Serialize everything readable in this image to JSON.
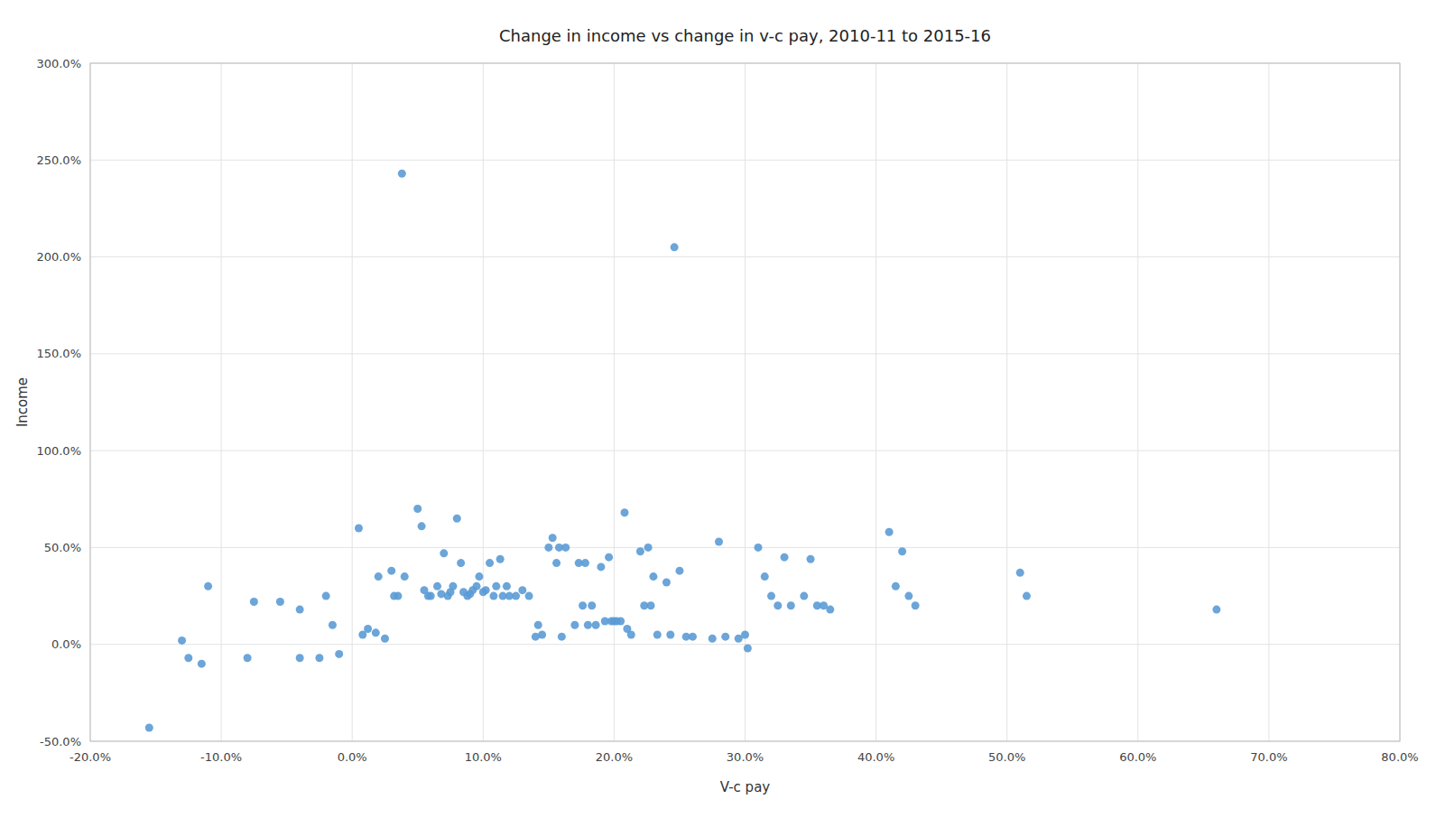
{
  "chart_data": {
    "type": "scatter",
    "title": "Change in income vs change in v-c pay, 2010-11 to 2015-16",
    "x_label": "V-c pay",
    "y_label": "Income",
    "color": "#5b9bd5",
    "grid": true,
    "xlim": [
      -0.2,
      0.8
    ],
    "ylim": [
      -0.5,
      3.0
    ],
    "xticks": [
      {
        "value": -0.2,
        "label": "-20.0%"
      },
      {
        "value": -0.1,
        "label": "-10.0%"
      },
      {
        "value": 0.0,
        "label": "0.0%"
      },
      {
        "value": 0.1,
        "label": "10.0%"
      },
      {
        "value": 0.2,
        "label": "20.0%"
      },
      {
        "value": 0.3,
        "label": "30.0%"
      },
      {
        "value": 0.4,
        "label": "40.0%"
      },
      {
        "value": 0.5,
        "label": "50.0%"
      },
      {
        "value": 0.6,
        "label": "60.0%"
      },
      {
        "value": 0.7,
        "label": "70.0%"
      },
      {
        "value": 0.8,
        "label": "80.0%"
      }
    ],
    "yticks": [
      {
        "value": -0.5,
        "label": "-50.0%"
      },
      {
        "value": 0.0,
        "label": "0.0%"
      },
      {
        "value": 0.5,
        "label": "50.0%"
      },
      {
        "value": 1.0,
        "label": "100.0%"
      },
      {
        "value": 1.5,
        "label": "150.0%"
      },
      {
        "value": 2.0,
        "label": "200.0%"
      },
      {
        "value": 2.5,
        "label": "250.0%"
      },
      {
        "value": 3.0,
        "label": "300.0%"
      }
    ],
    "x": [
      -0.155,
      -0.13,
      -0.125,
      -0.115,
      -0.11,
      -0.08,
      -0.075,
      -0.055,
      -0.04,
      -0.04,
      -0.025,
      -0.02,
      -0.015,
      -0.01,
      0.005,
      0.008,
      0.012,
      0.018,
      0.02,
      0.025,
      0.03,
      0.032,
      0.035,
      0.038,
      0.04,
      0.05,
      0.053,
      0.055,
      0.058,
      0.06,
      0.065,
      0.068,
      0.07,
      0.073,
      0.075,
      0.077,
      0.08,
      0.083,
      0.085,
      0.088,
      0.09,
      0.092,
      0.095,
      0.097,
      0.1,
      0.102,
      0.105,
      0.108,
      0.11,
      0.113,
      0.115,
      0.118,
      0.12,
      0.125,
      0.13,
      0.135,
      0.14,
      0.142,
      0.145,
      0.15,
      0.153,
      0.156,
      0.158,
      0.16,
      0.163,
      0.17,
      0.173,
      0.176,
      0.178,
      0.18,
      0.183,
      0.186,
      0.19,
      0.193,
      0.196,
      0.198,
      0.2,
      0.202,
      0.205,
      0.208,
      0.21,
      0.213,
      0.22,
      0.223,
      0.226,
      0.228,
      0.23,
      0.233,
      0.24,
      0.243,
      0.246,
      0.25,
      0.255,
      0.26,
      0.275,
      0.28,
      0.285,
      0.295,
      0.3,
      0.302,
      0.31,
      0.315,
      0.32,
      0.325,
      0.33,
      0.335,
      0.345,
      0.35,
      0.355,
      0.36,
      0.365,
      0.41,
      0.415,
      0.42,
      0.425,
      0.43,
      0.51,
      0.515,
      0.66
    ],
    "y": [
      -0.43,
      0.02,
      -0.07,
      -0.1,
      0.3,
      -0.07,
      0.22,
      0.22,
      -0.07,
      0.18,
      -0.07,
      0.25,
      0.1,
      -0.05,
      0.6,
      0.05,
      0.08,
      0.06,
      0.35,
      0.03,
      0.38,
      0.25,
      0.25,
      2.43,
      0.35,
      0.7,
      0.61,
      0.28,
      0.25,
      0.25,
      0.3,
      0.26,
      0.47,
      0.25,
      0.27,
      0.3,
      0.65,
      0.42,
      0.27,
      0.25,
      0.26,
      0.28,
      0.3,
      0.35,
      0.27,
      0.28,
      0.42,
      0.25,
      0.3,
      0.44,
      0.25,
      0.3,
      0.25,
      0.25,
      0.28,
      0.25,
      0.04,
      0.1,
      0.05,
      0.5,
      0.55,
      0.42,
      0.5,
      0.04,
      0.5,
      0.1,
      0.42,
      0.2,
      0.42,
      0.1,
      0.2,
      0.1,
      0.4,
      0.12,
      0.45,
      0.12,
      0.12,
      0.12,
      0.12,
      0.68,
      0.08,
      0.05,
      0.48,
      0.2,
      0.5,
      0.2,
      0.35,
      0.05,
      0.32,
      0.05,
      2.05,
      0.38,
      0.04,
      0.04,
      0.03,
      0.53,
      0.04,
      0.03,
      0.05,
      -0.02,
      0.5,
      0.35,
      0.25,
      0.2,
      0.45,
      0.2,
      0.25,
      0.44,
      0.2,
      0.2,
      0.18,
      0.58,
      0.3,
      0.48,
      0.25,
      0.2,
      0.37,
      0.25,
      0.18
    ]
  }
}
